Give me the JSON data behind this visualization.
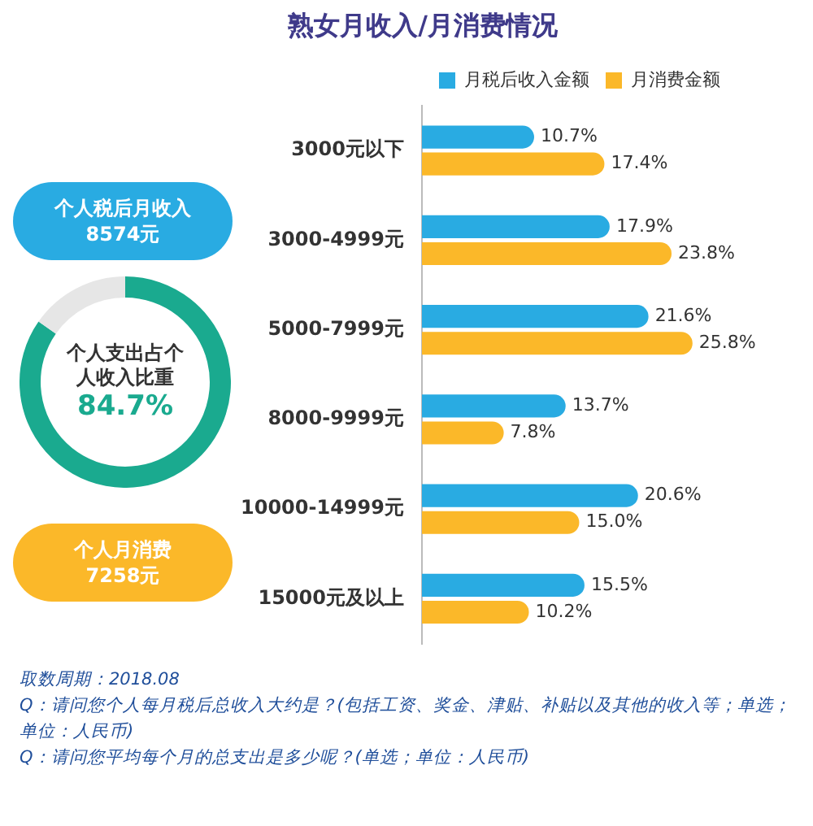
{
  "chart_data": [
    {
      "type": "other",
      "title": "个人税后月收入",
      "annotations": [
        "8574元"
      ],
      "color": "#29abe2"
    },
    {
      "type": "donut",
      "title": "个人支出占个人收入比重",
      "categories": [
        null,
        null
      ],
      "values": [
        84.7,
        15.3
      ],
      "colors": [
        "#1aaa8f",
        "#e6e6e6"
      ],
      "value_labels": [
        "84.7%",
        null
      ]
    },
    {
      "type": "other",
      "title": "个人月消费",
      "annotations": [
        "7258元"
      ],
      "color": "#fbb829"
    },
    {
      "type": "bar",
      "orientation": "horizontal",
      "title": "熟女月收入/月消费情况",
      "categories": [
        "3000元以下",
        "3000-4999元",
        "5000-7999元",
        "8000-9999元",
        "10000-14999元",
        "15000元及以上"
      ],
      "series": [
        {
          "name": "月税后收入金额",
          "color": "#29abe2",
          "values": [
            10.7,
            17.9,
            21.6,
            13.7,
            20.6,
            15.5
          ],
          "value_labels": [
            "10.7%",
            "17.9%",
            "21.6%",
            "13.7%",
            "20.6%",
            "15.5%"
          ]
        },
        {
          "name": "月消费金额",
          "color": "#fbb829",
          "values": [
            17.4,
            23.8,
            25.8,
            7.8,
            15.0,
            10.2
          ],
          "value_labels": [
            "17.4%",
            "23.8%",
            "25.8%",
            "7.8%",
            "15.0%",
            "10.2%"
          ]
        }
      ],
      "legend": "top right",
      "annotations": [
        "取数周期：2018.08",
        "Q：请问您个人每月税后总收入大约是？(包括工资、奖金、津贴、补贴以及其他的收入等；单选；单位：人民币)",
        "Q：请问您平均每个月的总支出是多少呢？(单选；单位：人民币)"
      ]
    }
  ]
}
